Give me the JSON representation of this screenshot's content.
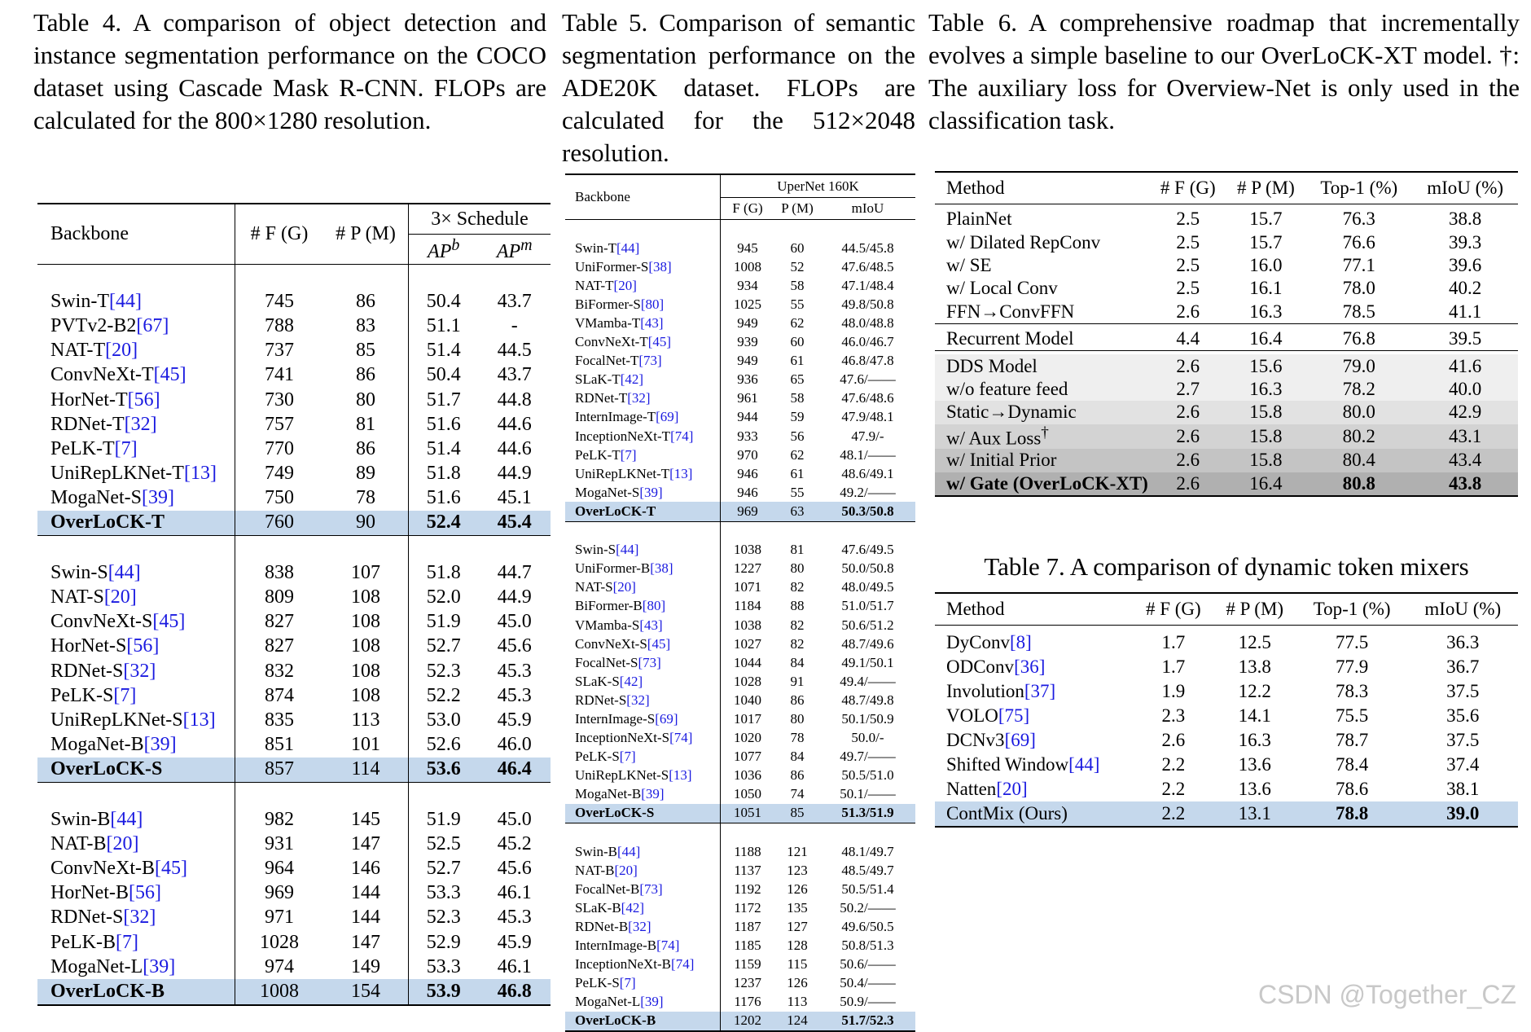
{
  "table4": {
    "label": "Table 4.",
    "caption": "A comparison of object detection and instance segmentation performance on the COCO dataset using Cascade Mask R-CNN. FLOPs are calculated for the 800×1280 resolution.",
    "header": {
      "backbone": "Backbone",
      "flops": "# F (G)",
      "params": "# P (M)",
      "schedule": "3× Schedule",
      "apb": "AP",
      "apb_sup": "b",
      "apm": "AP",
      "apm_sup": "m"
    },
    "groups": [
      [
        {
          "name": "Swin-T",
          "cite": "[44]",
          "f": "745",
          "p": "86",
          "apb": "50.4",
          "apm": "43.7"
        },
        {
          "name": "PVTv2-B2",
          "cite": "[67]",
          "f": "788",
          "p": "83",
          "apb": "51.1",
          "apm": "-"
        },
        {
          "name": "NAT-T",
          "cite": "[20]",
          "f": "737",
          "p": "85",
          "apb": "51.4",
          "apm": "44.5"
        },
        {
          "name": "ConvNeXt-T",
          "cite": "[45]",
          "f": "741",
          "p": "86",
          "apb": "50.4",
          "apm": "43.7"
        },
        {
          "name": "HorNet-T",
          "cite": "[56]",
          "f": "730",
          "p": "80",
          "apb": "51.7",
          "apm": "44.8"
        },
        {
          "name": "RDNet-T",
          "cite": "[32]",
          "f": "757",
          "p": "81",
          "apb": "51.6",
          "apm": "44.6"
        },
        {
          "name": "PeLK-T",
          "cite": "[7]",
          "f": "770",
          "p": "86",
          "apb": "51.4",
          "apm": "44.6"
        },
        {
          "name": "UniRepLKNet-T",
          "cite": "[13]",
          "f": "749",
          "p": "89",
          "apb": "51.8",
          "apm": "44.9"
        },
        {
          "name": "MogaNet-S",
          "cite": "[39]",
          "f": "750",
          "p": "78",
          "apb": "51.6",
          "apm": "45.1"
        },
        {
          "name": "OverLoCK-T",
          "cite": "",
          "f": "760",
          "p": "90",
          "apb": "52.4",
          "apm": "45.4",
          "hl": true
        }
      ],
      [
        {
          "name": "Swin-S",
          "cite": "[44]",
          "f": "838",
          "p": "107",
          "apb": "51.8",
          "apm": "44.7"
        },
        {
          "name": "NAT-S",
          "cite": "[20]",
          "f": "809",
          "p": "108",
          "apb": "52.0",
          "apm": "44.9"
        },
        {
          "name": "ConvNeXt-S",
          "cite": "[45]",
          "f": "827",
          "p": "108",
          "apb": "51.9",
          "apm": "45.0"
        },
        {
          "name": "HorNet-S",
          "cite": "[56]",
          "f": "827",
          "p": "108",
          "apb": "52.7",
          "apm": "45.6"
        },
        {
          "name": "RDNet-S",
          "cite": "[32]",
          "f": "832",
          "p": "108",
          "apb": "52.3",
          "apm": "45.3"
        },
        {
          "name": "PeLK-S",
          "cite": "[7]",
          "f": "874",
          "p": "108",
          "apb": "52.2",
          "apm": "45.3"
        },
        {
          "name": "UniRepLKNet-S",
          "cite": "[13]",
          "f": "835",
          "p": "113",
          "apb": "53.0",
          "apm": "45.9"
        },
        {
          "name": "MogaNet-B",
          "cite": "[39]",
          "f": "851",
          "p": "101",
          "apb": "52.6",
          "apm": "46.0"
        },
        {
          "name": "OverLoCK-S",
          "cite": "",
          "f": "857",
          "p": "114",
          "apb": "53.6",
          "apm": "46.4",
          "hl": true
        }
      ],
      [
        {
          "name": "Swin-B",
          "cite": "[44]",
          "f": "982",
          "p": "145",
          "apb": "51.9",
          "apm": "45.0"
        },
        {
          "name": "NAT-B",
          "cite": "[20]",
          "f": "931",
          "p": "147",
          "apb": "52.5",
          "apm": "45.2"
        },
        {
          "name": "ConvNeXt-B",
          "cite": "[45]",
          "f": "964",
          "p": "146",
          "apb": "52.7",
          "apm": "45.6"
        },
        {
          "name": "HorNet-B",
          "cite": "[56]",
          "f": "969",
          "p": "144",
          "apb": "53.3",
          "apm": "46.1"
        },
        {
          "name": "RDNet-S",
          "cite": "[32]",
          "f": "971",
          "p": "144",
          "apb": "52.3",
          "apm": "45.3"
        },
        {
          "name": "PeLK-B",
          "cite": "[7]",
          "f": "1028",
          "p": "147",
          "apb": "52.9",
          "apm": "45.9"
        },
        {
          "name": "MogaNet-L",
          "cite": "[39]",
          "f": "974",
          "p": "149",
          "apb": "53.3",
          "apm": "46.1"
        },
        {
          "name": "OverLoCK-B",
          "cite": "",
          "f": "1008",
          "p": "154",
          "apb": "53.9",
          "apm": "46.8",
          "hl": true
        }
      ]
    ]
  },
  "table5": {
    "label": "Table 5.",
    "caption": "Comparison of semantic segmentation performance on the ADE20K dataset. FLOPs are calculated for the 512×2048 resolution.",
    "header": {
      "backbone": "Backbone",
      "group": "UperNet 160K",
      "f": "F (G)",
      "p": "P (M)",
      "miou": "mIoU"
    },
    "groups": [
      [
        {
          "name": "Swin-T",
          "cite": "[44]",
          "f": "945",
          "p": "60",
          "m": "44.5/45.8"
        },
        {
          "name": "UniFormer-S",
          "cite": "[38]",
          "f": "1008",
          "p": "52",
          "m": "47.6/48.5"
        },
        {
          "name": "NAT-T",
          "cite": "[20]",
          "f": "934",
          "p": "58",
          "m": "47.1/48.4"
        },
        {
          "name": "BiFormer-S",
          "cite": "[80]",
          "f": "1025",
          "p": "55",
          "m": "49.8/50.8"
        },
        {
          "name": "VMamba-T",
          "cite": "[43]",
          "f": "949",
          "p": "62",
          "m": "48.0/48.8"
        },
        {
          "name": "ConvNeXt-T",
          "cite": "[45]",
          "f": "939",
          "p": "60",
          "m": "46.0/46.7"
        },
        {
          "name": "FocalNet-T",
          "cite": "[73]",
          "f": "949",
          "p": "61",
          "m": "46.8/47.8"
        },
        {
          "name": "SLaK-T",
          "cite": "[42]",
          "f": "936",
          "p": "65",
          "m": "47.6/——"
        },
        {
          "name": "RDNet-T",
          "cite": "[32]",
          "f": "961",
          "p": "58",
          "m": "47.6/48.6"
        },
        {
          "name": "InternImage-T",
          "cite": "[69]",
          "f": "944",
          "p": "59",
          "m": "47.9/48.1"
        },
        {
          "name": "InceptionNeXt-T",
          "cite": "[74]",
          "f": "933",
          "p": "56",
          "m": "47.9/-"
        },
        {
          "name": "PeLK-T",
          "cite": "[7]",
          "f": "970",
          "p": "62",
          "m": "48.1/——"
        },
        {
          "name": "UniRepLKNet-T",
          "cite": "[13]",
          "f": "946",
          "p": "61",
          "m": "48.6/49.1"
        },
        {
          "name": "MogaNet-S",
          "cite": "[39]",
          "f": "946",
          "p": "55",
          "m": "49.2/——"
        },
        {
          "name": "OverLoCK-T",
          "cite": "",
          "f": "969",
          "p": "63",
          "m": "50.3/50.8",
          "hl": true
        }
      ],
      [
        {
          "name": "Swin-S",
          "cite": "[44]",
          "f": "1038",
          "p": "81",
          "m": "47.6/49.5"
        },
        {
          "name": "UniFormer-B",
          "cite": "[38]",
          "f": "1227",
          "p": "80",
          "m": "50.0/50.8"
        },
        {
          "name": "NAT-S",
          "cite": "[20]",
          "f": "1071",
          "p": "82",
          "m": "48.0/49.5"
        },
        {
          "name": "BiFormer-B",
          "cite": "[80]",
          "f": "1184",
          "p": "88",
          "m": "51.0/51.7"
        },
        {
          "name": "VMamba-S",
          "cite": "[43]",
          "f": "1038",
          "p": "82",
          "m": "50.6/51.2"
        },
        {
          "name": "ConvNeXt-S",
          "cite": "[45]",
          "f": "1027",
          "p": "82",
          "m": "48.7/49.6"
        },
        {
          "name": "FocalNet-S",
          "cite": "[73]",
          "f": "1044",
          "p": "84",
          "m": "49.1/50.1"
        },
        {
          "name": "SLaK-S",
          "cite": "[42]",
          "f": "1028",
          "p": "91",
          "m": "49.4/——"
        },
        {
          "name": "RDNet-S",
          "cite": "[32]",
          "f": "1040",
          "p": "86",
          "m": "48.7/49.8"
        },
        {
          "name": "InternImage-S",
          "cite": "[69]",
          "f": "1017",
          "p": "80",
          "m": "50.1/50.9"
        },
        {
          "name": "InceptionNeXt-S",
          "cite": "[74]",
          "f": "1020",
          "p": "78",
          "m": "50.0/-"
        },
        {
          "name": "PeLK-S",
          "cite": "[7]",
          "f": "1077",
          "p": "84",
          "m": "49.7/——"
        },
        {
          "name": "UniRepLKNet-S",
          "cite": "[13]",
          "f": "1036",
          "p": "86",
          "m": "50.5/51.0"
        },
        {
          "name": "MogaNet-B",
          "cite": "[39]",
          "f": "1050",
          "p": "74",
          "m": "50.1/——"
        },
        {
          "name": "OverLoCK-S",
          "cite": "",
          "f": "1051",
          "p": "85",
          "m": "51.3/51.9",
          "hl": true
        }
      ],
      [
        {
          "name": "Swin-B",
          "cite": "[44]",
          "f": "1188",
          "p": "121",
          "m": "48.1/49.7"
        },
        {
          "name": "NAT-B",
          "cite": "[20]",
          "f": "1137",
          "p": "123",
          "m": "48.5/49.7"
        },
        {
          "name": "FocalNet-B",
          "cite": "[73]",
          "f": "1192",
          "p": "126",
          "m": "50.5/51.4"
        },
        {
          "name": "SLaK-B",
          "cite": "[42]",
          "f": "1172",
          "p": "135",
          "m": "50.2/——"
        },
        {
          "name": "RDNet-B",
          "cite": "[32]",
          "f": "1187",
          "p": "127",
          "m": "49.6/50.5"
        },
        {
          "name": "InternImage-B",
          "cite": "[74]",
          "f": "1185",
          "p": "128",
          "m": "50.8/51.3"
        },
        {
          "name": "InceptionNeXt-B",
          "cite": "[74]",
          "f": "1159",
          "p": "115",
          "m": "50.6/——"
        },
        {
          "name": "PeLK-S",
          "cite": "[7]",
          "f": "1237",
          "p": "126",
          "m": "50.4/——"
        },
        {
          "name": "MogaNet-L",
          "cite": "[39]",
          "f": "1176",
          "p": "113",
          "m": "50.9/——"
        },
        {
          "name": "OverLoCK-B",
          "cite": "",
          "f": "1202",
          "p": "124",
          "m": "51.7/52.3",
          "hl": true
        }
      ]
    ]
  },
  "table6": {
    "label": "Table 6.",
    "caption": "A comprehensive roadmap that incrementally evolves a simple baseline to our OverLoCK-XT model. †: The auxiliary loss for Overview-Net is only used in the classification task.",
    "header": {
      "method": "Method",
      "f": "# F (G)",
      "p": "# P (M)",
      "top1": "Top-1 (%)",
      "miou": "mIoU (%)"
    },
    "groups": [
      [
        {
          "name": "PlainNet",
          "f": "2.5",
          "p": "15.7",
          "t": "76.3",
          "m": "38.8"
        },
        {
          "name": "w/ Dilated RepConv",
          "f": "2.5",
          "p": "15.7",
          "t": "76.6",
          "m": "39.3"
        },
        {
          "name": "w/ SE",
          "f": "2.5",
          "p": "16.0",
          "t": "77.1",
          "m": "39.6"
        },
        {
          "name": "w/ Local Conv",
          "f": "2.5",
          "p": "16.1",
          "t": "78.0",
          "m": "40.2"
        },
        {
          "name": "FFN→ConvFFN",
          "f": "2.6",
          "p": "16.3",
          "t": "78.5",
          "m": "41.1"
        }
      ],
      [
        {
          "name": "Recurrent Model",
          "f": "4.4",
          "p": "16.4",
          "t": "76.8",
          "m": "39.5"
        }
      ],
      [
        {
          "name": "DDS Model",
          "f": "2.6",
          "p": "15.6",
          "t": "79.0",
          "m": "41.6",
          "shade": "g1"
        },
        {
          "name": "w/o feature feed",
          "f": "2.7",
          "p": "16.3",
          "t": "78.2",
          "m": "40.0",
          "shade": "g1"
        },
        {
          "name": "Static→Dynamic",
          "f": "2.6",
          "p": "15.8",
          "t": "80.0",
          "m": "42.9",
          "shade": "g2"
        },
        {
          "name": "w/ Aux Loss",
          "sup": "†",
          "f": "2.6",
          "p": "15.8",
          "t": "80.2",
          "m": "43.1",
          "shade": "g3"
        },
        {
          "name": "w/ Initial Prior",
          "f": "2.6",
          "p": "15.8",
          "t": "80.4",
          "m": "43.4",
          "shade": "g4"
        },
        {
          "name": "w/ Gate (OverLoCK-XT)",
          "f": "2.6",
          "p": "16.4",
          "t": "80.8",
          "m": "43.8",
          "shade": "g5",
          "bold": true
        }
      ]
    ]
  },
  "table7": {
    "caption": "Table 7. A comparison of dynamic token mixers",
    "header": {
      "method": "Method",
      "f": "# F (G)",
      "p": "# P (M)",
      "top1": "Top-1 (%)",
      "miou": "mIoU (%)"
    },
    "rows": [
      {
        "name": "DyConv",
        "cite": "[8]",
        "f": "1.7",
        "p": "12.5",
        "t": "77.5",
        "m": "36.3"
      },
      {
        "name": "ODConv",
        "cite": "[36]",
        "f": "1.7",
        "p": "13.8",
        "t": "77.9",
        "m": "36.7"
      },
      {
        "name": "Involution",
        "cite": "[37]",
        "f": "1.9",
        "p": "12.2",
        "t": "78.3",
        "m": "37.5"
      },
      {
        "name": "VOLO",
        "cite": "[75]",
        "f": "2.3",
        "p": "14.1",
        "t": "75.5",
        "m": "35.6"
      },
      {
        "name": "DCNv3",
        "cite": "[69]",
        "f": "2.6",
        "p": "16.3",
        "t": "78.7",
        "m": "37.5"
      },
      {
        "name": "Shifted Window",
        "cite": "[44]",
        "f": "2.2",
        "p": "13.6",
        "t": "78.4",
        "m": "37.4"
      },
      {
        "name": "Natten",
        "cite": "[20]",
        "f": "2.2",
        "p": "13.6",
        "t": "78.6",
        "m": "38.1"
      },
      {
        "name": "ContMix (Ours)",
        "cite": "",
        "f": "2.2",
        "p": "13.1",
        "t": "78.8",
        "m": "39.0",
        "hl": true
      }
    ]
  },
  "watermark": "CSDN @Together_CZ"
}
